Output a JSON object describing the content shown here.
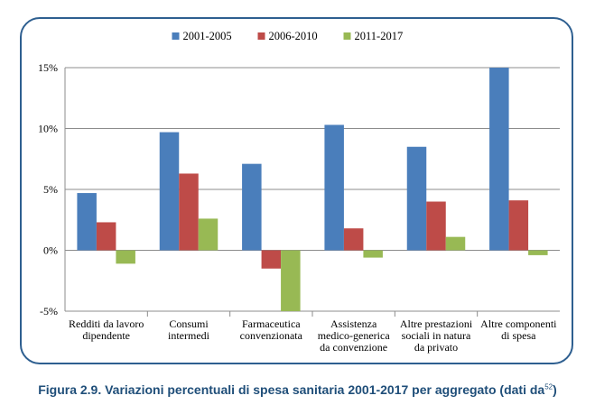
{
  "chart_data": {
    "type": "bar",
    "categories": [
      [
        "Redditi da lavoro",
        "dipendente"
      ],
      [
        "Consumi",
        "intermedi"
      ],
      [
        "Farmaceutica",
        "convenzionata"
      ],
      [
        "Assistenza",
        "medico-generica",
        "da convenzione"
      ],
      [
        "Altre prestazioni",
        "sociali in natura",
        "da privato"
      ],
      [
        "Altre componenti",
        "di spesa"
      ]
    ],
    "series": [
      {
        "name": "2001-2005",
        "color": "#4a7ebb",
        "values": [
          4.7,
          9.7,
          7.1,
          10.3,
          8.5,
          15.0
        ]
      },
      {
        "name": "2006-2010",
        "color": "#be4b48",
        "values": [
          2.3,
          6.3,
          -1.5,
          1.8,
          4.0,
          4.1
        ]
      },
      {
        "name": "2011-2017",
        "color": "#98b954",
        "values": [
          -1.1,
          2.6,
          -5.0,
          -0.6,
          1.1,
          -0.4
        ]
      }
    ],
    "ylim": [
      -5,
      15
    ],
    "yticks": [
      -5,
      0,
      5,
      10,
      15
    ],
    "ytick_labels": [
      "-5%",
      "0%",
      "5%",
      "10%",
      "15%"
    ],
    "grid": true,
    "legend_position": "top-center"
  },
  "caption": {
    "text": "Figura 2.9. Variazioni percentuali di spesa sanitaria 2001-2017 per aggregato (dati da",
    "note": "52",
    "close": ")"
  }
}
